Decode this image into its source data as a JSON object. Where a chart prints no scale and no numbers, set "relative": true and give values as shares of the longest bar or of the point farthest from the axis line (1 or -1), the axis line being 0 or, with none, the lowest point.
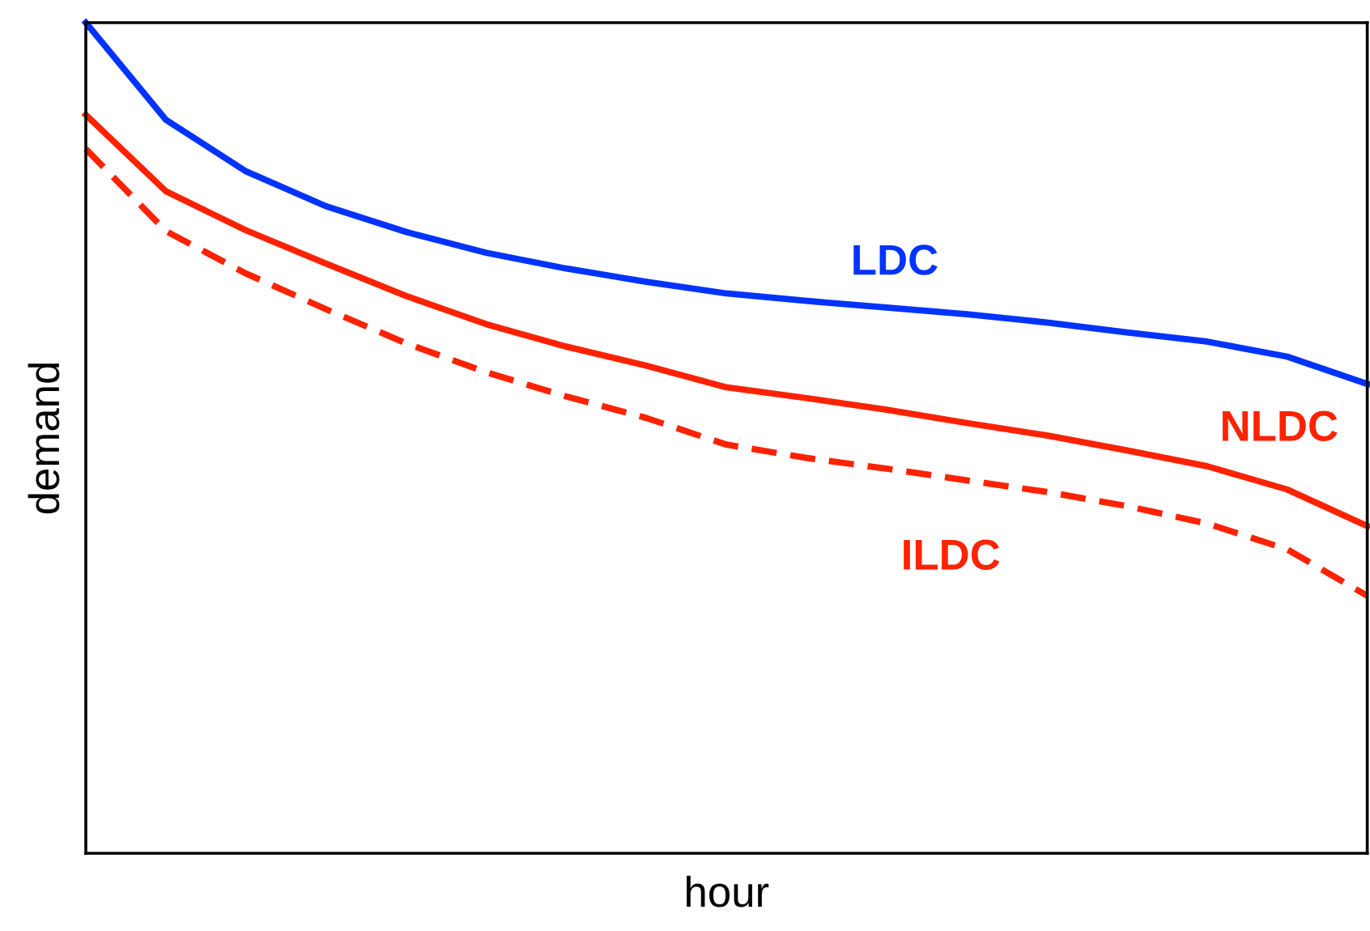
{
  "chart_data": {
    "type": "line",
    "relative": true,
    "xlabel": "hour",
    "ylabel": "demand",
    "categories": [
      null,
      null,
      null,
      null,
      null,
      null,
      null,
      null,
      null,
      null,
      null,
      null,
      null,
      null,
      null,
      null,
      null
    ],
    "series": [
      {
        "name": "LDC",
        "color": "#0033ff",
        "line_style": "solid",
        "values": [
          1.0,
          0.883,
          0.821,
          0.779,
          0.748,
          0.723,
          0.704,
          0.688,
          0.674,
          0.665,
          0.657,
          0.649,
          0.639,
          0.627,
          0.616,
          0.598,
          0.565
        ]
      },
      {
        "name": "NLDC",
        "color": "#ff2200",
        "line_style": "solid",
        "values": [
          0.889,
          0.797,
          0.75,
          0.71,
          0.671,
          0.637,
          0.61,
          0.587,
          0.561,
          0.548,
          0.534,
          0.518,
          0.503,
          0.485,
          0.466,
          0.438,
          0.394
        ]
      },
      {
        "name": "ILDC",
        "color": "#ff2200",
        "line_style": "dashed",
        "values": [
          0.848,
          0.749,
          0.698,
          0.655,
          0.614,
          0.579,
          0.55,
          0.524,
          0.492,
          0.476,
          0.463,
          0.449,
          0.435,
          0.418,
          0.397,
          0.366,
          0.31
        ]
      }
    ],
    "legend": false,
    "tick_labels": false
  }
}
